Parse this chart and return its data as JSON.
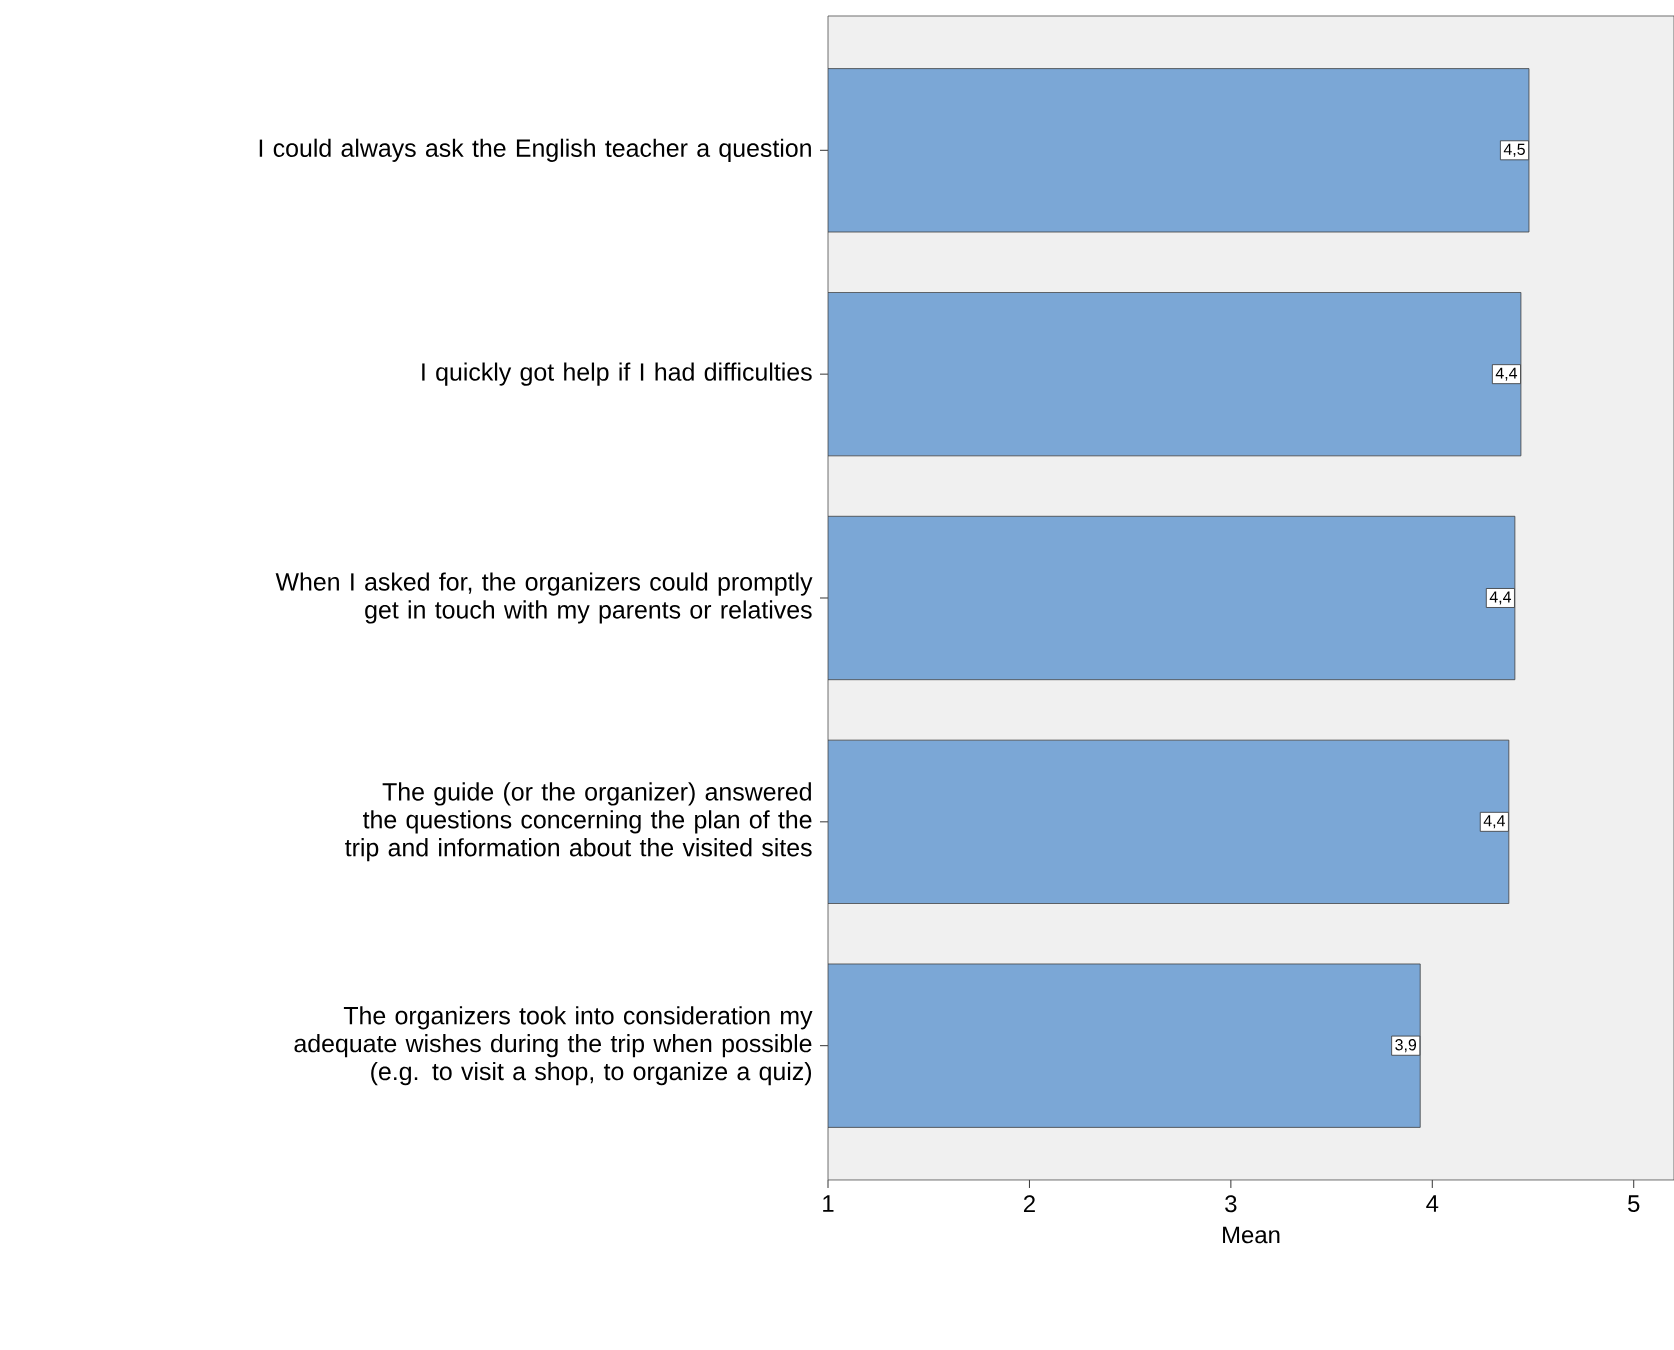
{
  "chart_data": {
    "type": "bar",
    "orientation": "horizontal",
    "xlabel": "Mean",
    "categories": [
      "I could always ask the English teacher a question",
      "I quickly got help if I had difficulties",
      "When I asked for, the organizers could promptly get in touch with my parents or relatives",
      "The guide (or the organizer) answered the questions concerning the plan of the trip and information about the visited sites",
      "The organizers took into consideration my adequate wishes during the trip when possible (e.g. to visit a shop, to organize a quiz)"
    ],
    "values": [
      4.48,
      4.44,
      4.41,
      4.38,
      3.94
    ],
    "value_labels": [
      "4,5",
      "4,4",
      "4,4",
      "4,4",
      "3,9"
    ],
    "color": "#7ba7d6",
    "xlim": [
      1,
      5.2
    ],
    "xticks": [
      1,
      2,
      3,
      4,
      5
    ],
    "grid": false
  }
}
